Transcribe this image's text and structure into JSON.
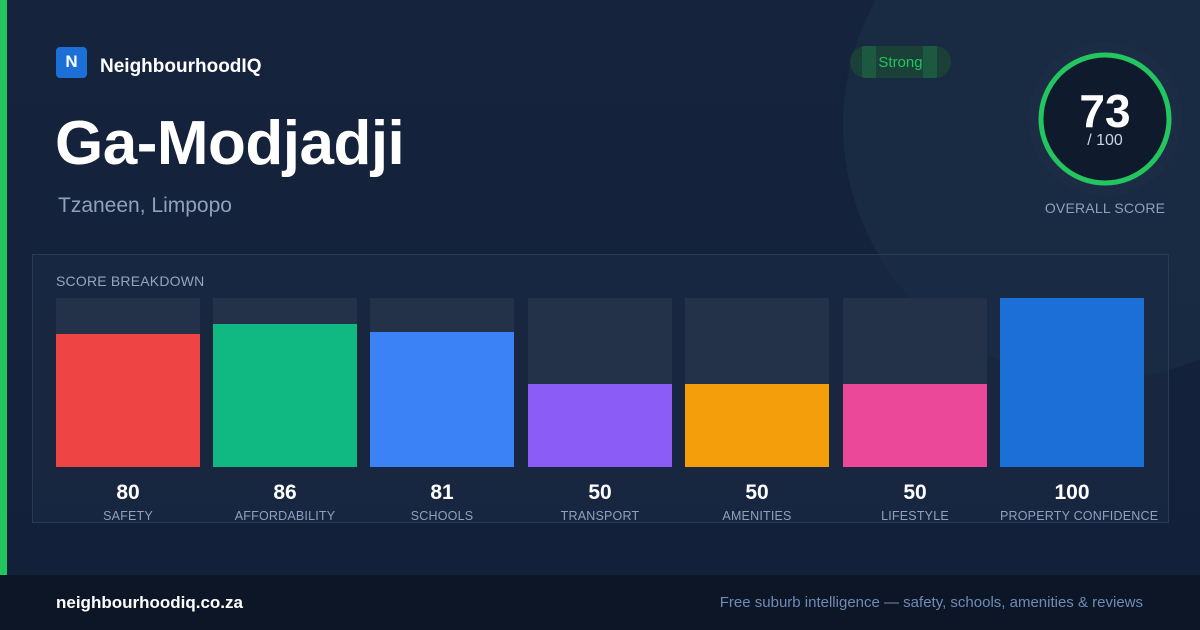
{
  "brand": {
    "logo_letter": "N",
    "name": "NeighbourhoodIQ"
  },
  "suburb": {
    "name": "Ga-Modjadji",
    "location": "Tzaneen, Limpopo"
  },
  "badge": {
    "label": "Strong",
    "color": "#22c55e",
    "bg": "#1a4038"
  },
  "overall": {
    "score": "73",
    "max_label": "/ 100",
    "score_fraction": 0.73,
    "label": "OVERALL SCORE"
  },
  "breakdown": {
    "title": "SCORE BREAKDOWN",
    "items": [
      {
        "label": "SAFETY",
        "value": 80,
        "color": "#ef4444"
      },
      {
        "label": "AFFORDABILITY",
        "value": 86,
        "color": "#10b981"
      },
      {
        "label": "SCHOOLS",
        "value": 81,
        "color": "#3b82f6"
      },
      {
        "label": "TRANSPORT",
        "value": 50,
        "color": "#8b5cf6"
      },
      {
        "label": "AMENITIES",
        "value": 50,
        "color": "#f59e0b"
      },
      {
        "label": "LIFESTYLE",
        "value": 50,
        "color": "#ec4899"
      },
      {
        "label": "PROPERTY CONFIDENCE",
        "value": 100,
        "color": "#1d6fd8"
      }
    ]
  },
  "footer": {
    "url": "neighbourhoodiq.co.za",
    "tagline": "Free suburb intelligence — safety, schools, amenities & reviews"
  },
  "colors": {
    "accent": "#22c55e",
    "logo_bg": "#1d6fd8",
    "ring": "#22c55e"
  }
}
